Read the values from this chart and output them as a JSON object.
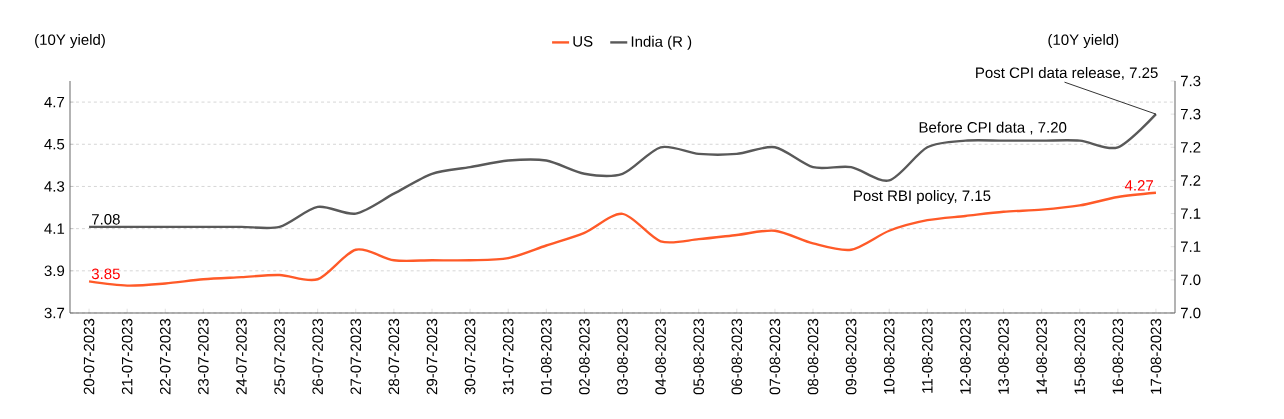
{
  "chart_data": {
    "type": "line",
    "ylabel": "(10Y yield)",
    "y2label": "(10Y yield)",
    "categories": [
      "20-07-2023",
      "21-07-2023",
      "22-07-2023",
      "23-07-2023",
      "24-07-2023",
      "25-07-2023",
      "26-07-2023",
      "27-07-2023",
      "28-07-2023",
      "29-07-2023",
      "30-07-2023",
      "31-07-2023",
      "01-08-2023",
      "02-08-2023",
      "03-08-2023",
      "04-08-2023",
      "05-08-2023",
      "06-08-2023",
      "07-08-2023",
      "08-08-2023",
      "09-08-2023",
      "10-08-2023",
      "11-08-2023",
      "12-08-2023",
      "13-08-2023",
      "14-08-2023",
      "15-08-2023",
      "16-08-2023",
      "17-08-2023"
    ],
    "series": [
      {
        "name": "US",
        "color": "#ff5a28",
        "values": [
          3.85,
          3.83,
          3.84,
          3.86,
          3.87,
          3.88,
          3.86,
          4.0,
          3.95,
          3.95,
          3.95,
          3.96,
          4.02,
          4.08,
          4.17,
          4.04,
          4.05,
          4.07,
          4.09,
          4.03,
          4.0,
          4.09,
          4.14,
          4.16,
          4.18,
          4.19,
          4.21,
          4.25,
          4.27
        ],
        "value_labels": [
          "3.85",
          null,
          null,
          null,
          null,
          null,
          null,
          null,
          null,
          null,
          null,
          null,
          null,
          null,
          null,
          null,
          null,
          null,
          null,
          null,
          null,
          null,
          null,
          null,
          null,
          null,
          null,
          null,
          "4.27"
        ]
      },
      {
        "name": "India (R )",
        "color": "#595959",
        "axis": "y2",
        "values": [
          7.08,
          7.08,
          7.08,
          7.08,
          7.08,
          7.08,
          7.11,
          7.1,
          7.13,
          7.16,
          7.17,
          7.18,
          7.18,
          7.16,
          7.16,
          7.2,
          7.19,
          7.19,
          7.2,
          7.17,
          7.17,
          7.15,
          7.2,
          7.21,
          7.21,
          7.21,
          7.21,
          7.2,
          7.25
        ],
        "value_labels": [
          "7.08",
          null,
          null,
          null,
          null,
          null,
          null,
          null,
          null,
          null,
          null,
          null,
          null,
          null,
          null,
          null,
          null,
          null,
          null,
          null,
          null,
          null,
          null,
          null,
          null,
          null,
          null,
          null,
          null
        ]
      }
    ],
    "ylim": [
      3.7,
      4.8
    ],
    "yticks": [
      3.7,
      3.9,
      4.1,
      4.3,
      4.5,
      4.7
    ],
    "y2lim": [
      6.95,
      7.3
    ],
    "y2ticks": [
      {
        "value": 6.95,
        "label": "7.0"
      },
      {
        "value": 7.0,
        "label": "7.0"
      },
      {
        "value": 7.05,
        "label": "7.1"
      },
      {
        "value": 7.1,
        "label": "7.1"
      },
      {
        "value": 7.15,
        "label": "7.2"
      },
      {
        "value": 7.2,
        "label": "7.2"
      },
      {
        "value": 7.25,
        "label": "7.3"
      },
      {
        "value": 7.3,
        "label": "7.3"
      }
    ],
    "annotations": [
      {
        "text": "Post CPI data release, 7.25",
        "x": "17-08-2023"
      },
      "Before CPI data , 7.20",
      "Post RBI policy, 7.15"
    ],
    "grid": "y",
    "legend": "top",
    "marker": "none",
    "line_style": "solid"
  }
}
